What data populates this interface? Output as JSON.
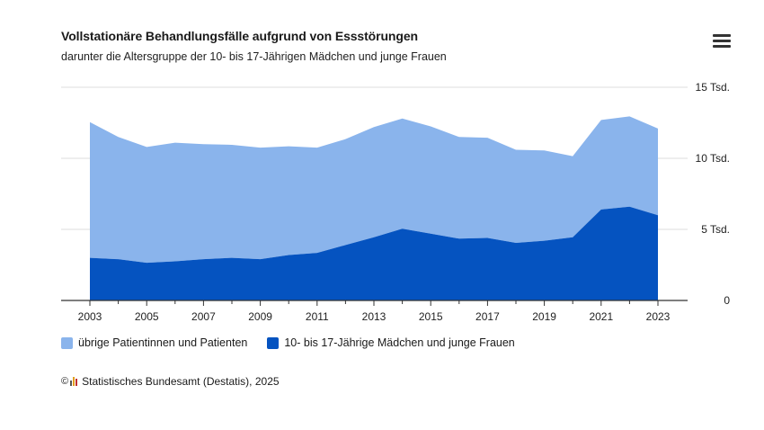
{
  "header": {
    "title": "Vollstationäre Behandlungsfälle aufgrund von Essstörungen",
    "subtitle": "darunter die Altersgruppe der 10- bis 17-Jährigen Mädchen und junge Frauen"
  },
  "menu": {
    "icon": "hamburger-menu-icon"
  },
  "source": {
    "text": "Statistisches Bundesamt (Destatis), 2025",
    "copyright_icon": "copyright-icon",
    "logo_icon": "destatis-logo-icon"
  },
  "colors": {
    "total_area": "#8ab4ec",
    "girls_area": "#0553c0",
    "gridline": "#dddddd",
    "axis": "#333333"
  },
  "chart_data": {
    "type": "area",
    "stacked": true,
    "x": [
      2003,
      2004,
      2005,
      2006,
      2007,
      2008,
      2009,
      2010,
      2011,
      2012,
      2013,
      2014,
      2015,
      2016,
      2017,
      2018,
      2019,
      2020,
      2021,
      2022,
      2023
    ],
    "x_ticks": [
      2003,
      2005,
      2007,
      2009,
      2011,
      2013,
      2015,
      2017,
      2019,
      2021,
      2023
    ],
    "y_ticks": [
      {
        "value": 0,
        "label": "0"
      },
      {
        "value": 5000,
        "label": "5 Tsd."
      },
      {
        "value": 10000,
        "label": "10 Tsd."
      },
      {
        "value": 15000,
        "label": "15 Tsd."
      }
    ],
    "ylim": [
      0,
      15000
    ],
    "grid": true,
    "legend_position": "bottom-left",
    "series": [
      {
        "name": "übrige Patientinnen und Patienten",
        "color": "#8ab4ec",
        "values": [
          9550,
          8600,
          8150,
          8350,
          8100,
          7950,
          7850,
          7650,
          7400,
          7450,
          7750,
          7750,
          7550,
          7150,
          7050,
          6550,
          6350,
          5700,
          6300,
          6350,
          6100
        ]
      },
      {
        "name": "10- bis 17-Jährige Mädchen und junge Frauen",
        "color": "#0553c0",
        "values": [
          3000,
          2900,
          2650,
          2750,
          2900,
          3000,
          2900,
          3200,
          3350,
          3900,
          4450,
          5050,
          4700,
          4350,
          4400,
          4050,
          4200,
          4450,
          6400,
          6600,
          6000
        ]
      }
    ]
  }
}
